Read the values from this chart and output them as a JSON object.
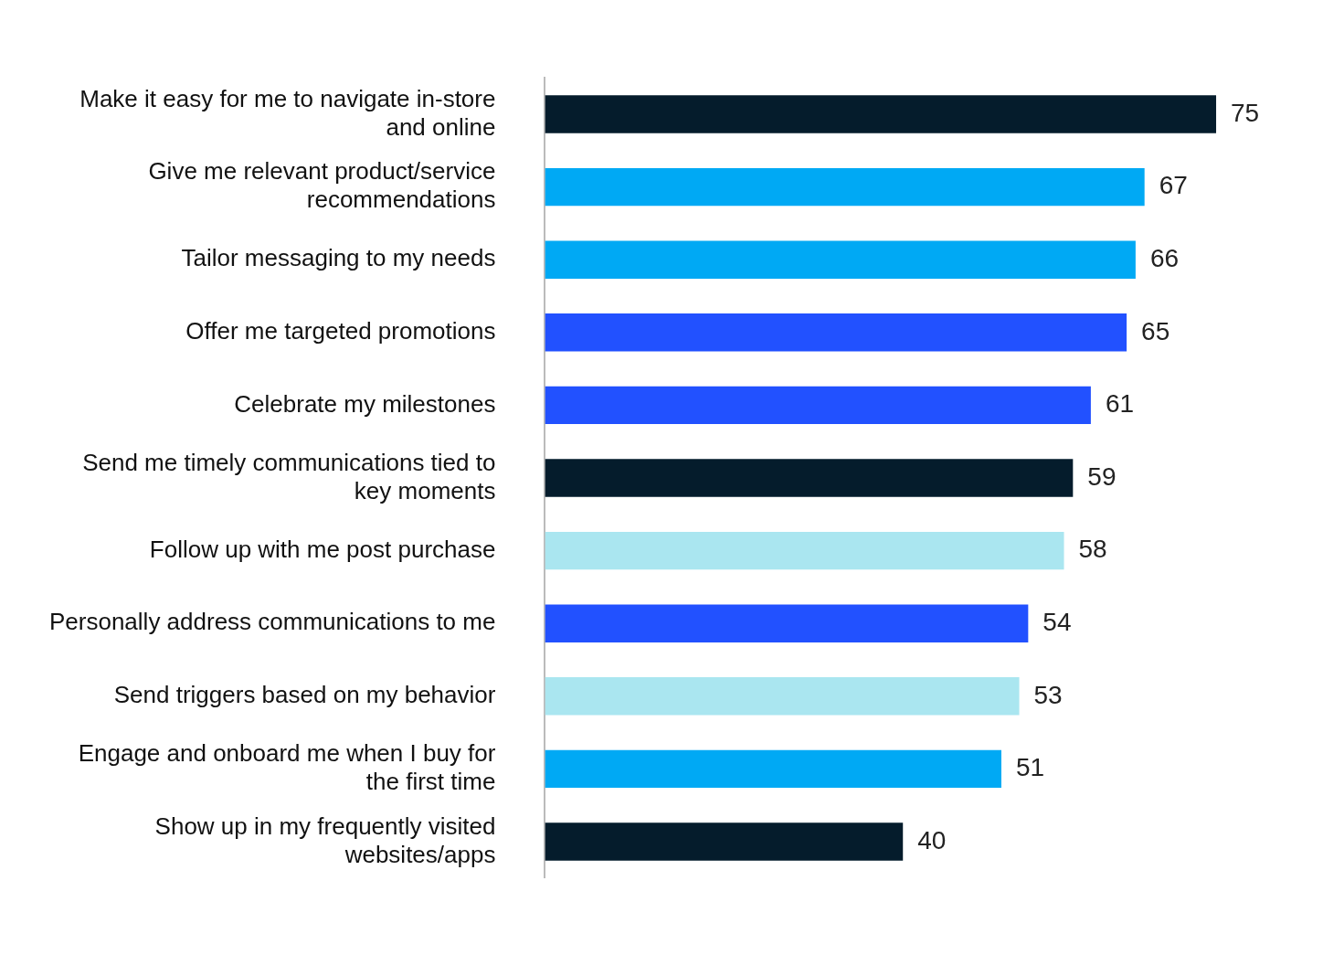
{
  "chart_data": {
    "type": "bar",
    "orientation": "horizontal",
    "categories": [
      "Make it easy for me to navigate in-store and online",
      "Give me relevant product/service recommendations",
      "Tailor messaging to my needs",
      "Offer me targeted promotions",
      "Celebrate my milestones",
      "Send me timely communications tied to key moments",
      "Follow up with me post purchase",
      "Personally address communications to me",
      "Send triggers based on my behavior",
      "Engage and onboard me when I buy for the first time",
      "Show up in my frequently visited websites/apps"
    ],
    "values": [
      75,
      67,
      66,
      65,
      61,
      59,
      58,
      54,
      53,
      51,
      40
    ],
    "colors": [
      "#051c2c",
      "#00a9f4",
      "#00a9f4",
      "#2251ff",
      "#2251ff",
      "#051c2c",
      "#aae6f0",
      "#2251ff",
      "#aae6f0",
      "#00a9f4",
      "#051c2c"
    ],
    "data_labels": true,
    "legend": false
  }
}
